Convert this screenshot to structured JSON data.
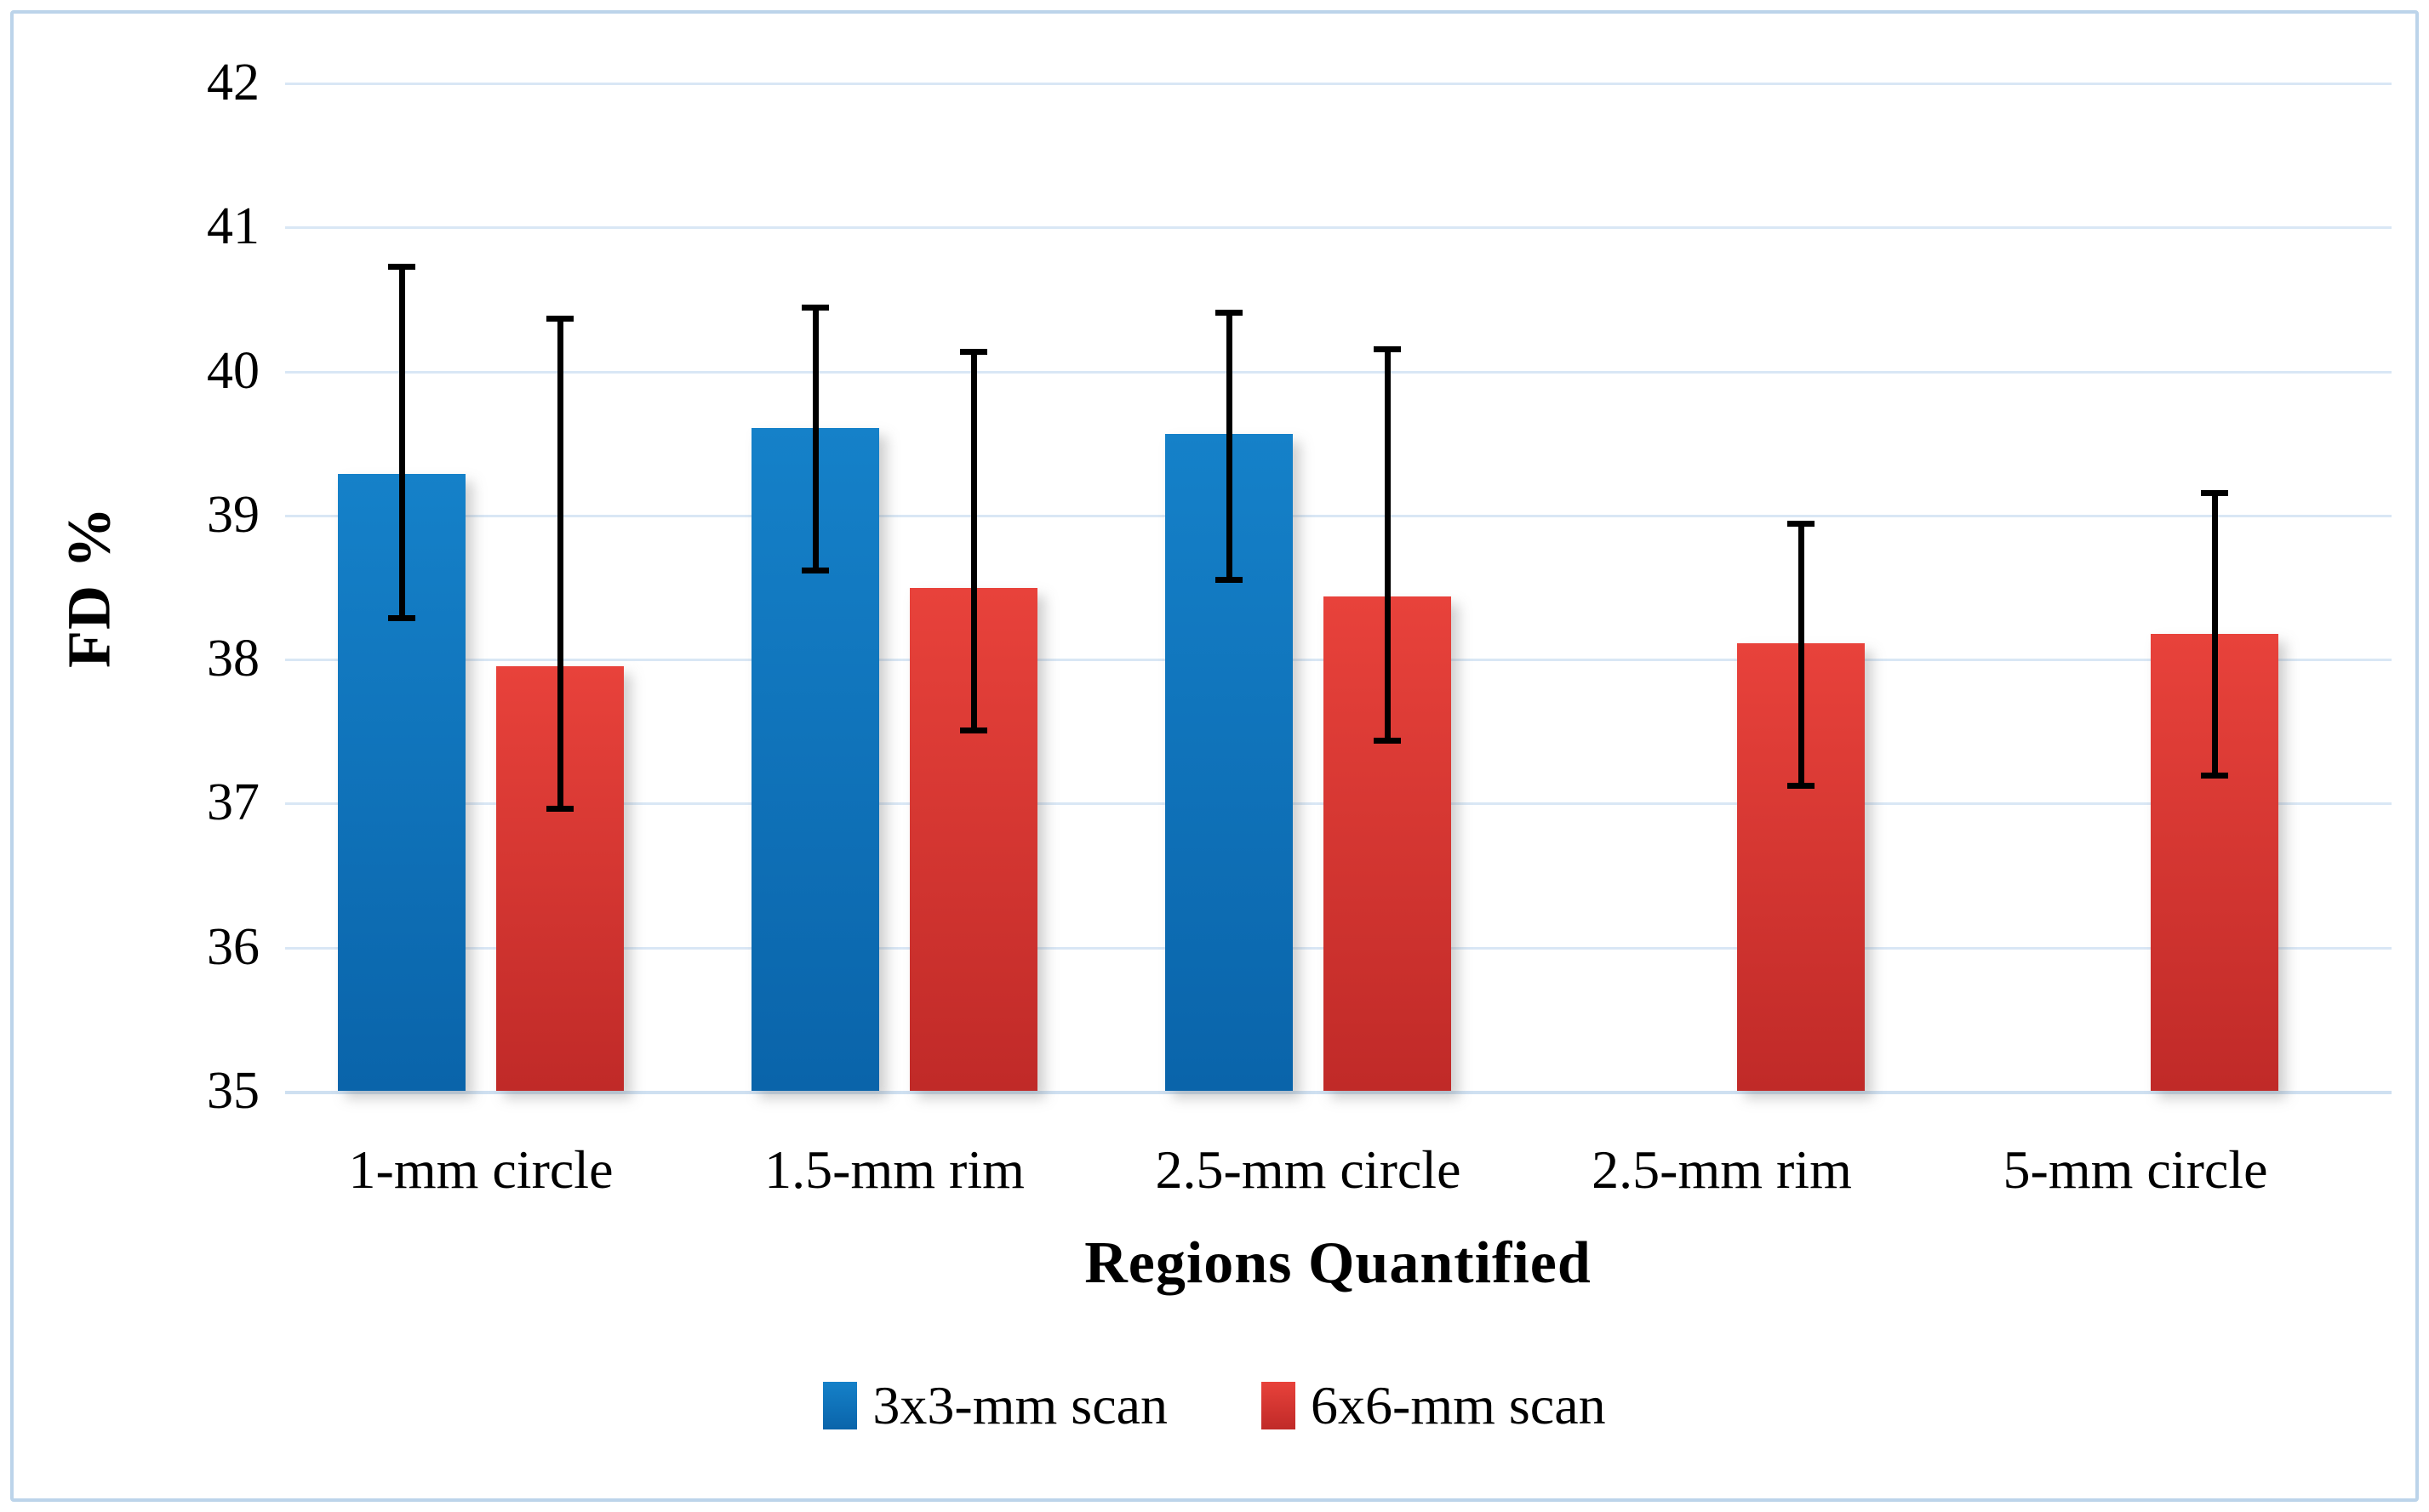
{
  "figure": {
    "background": "#ffffff",
    "border_color": "#bcd4ea",
    "gridline_color": "#d9e7f5",
    "error_bar_color": "#000000"
  },
  "chart_data": {
    "type": "bar",
    "title": "",
    "xlabel": "Regions Quantified",
    "ylabel": "FD %",
    "ylim": [
      35,
      42
    ],
    "yticks": [
      42,
      41,
      40,
      39,
      38,
      37,
      36,
      35
    ],
    "grid": true,
    "legend_position": "bottom",
    "categories": [
      "1-mm circle",
      "1.5-mm rim",
      "2.5-mm circle",
      "2.5-mm rim",
      "5-mm circle"
    ],
    "series": [
      {
        "name": "3x3-mm scan",
        "color_top": "#1581c9",
        "color_bottom": "#0a64aa",
        "values": [
          39.28,
          39.6,
          39.56,
          null,
          null
        ],
        "err_low": [
          38.28,
          38.61,
          38.55,
          null,
          null
        ],
        "err_high": [
          40.72,
          40.44,
          40.4,
          null,
          null
        ]
      },
      {
        "name": "6x6-mm scan",
        "color_top": "#e8423b",
        "color_bottom": "#c02a28",
        "values": [
          37.95,
          38.49,
          38.43,
          38.11,
          38.17
        ],
        "err_low": [
          36.96,
          37.5,
          37.43,
          37.12,
          37.19
        ],
        "err_high": [
          40.36,
          40.13,
          40.15,
          38.94,
          39.15
        ]
      }
    ]
  }
}
